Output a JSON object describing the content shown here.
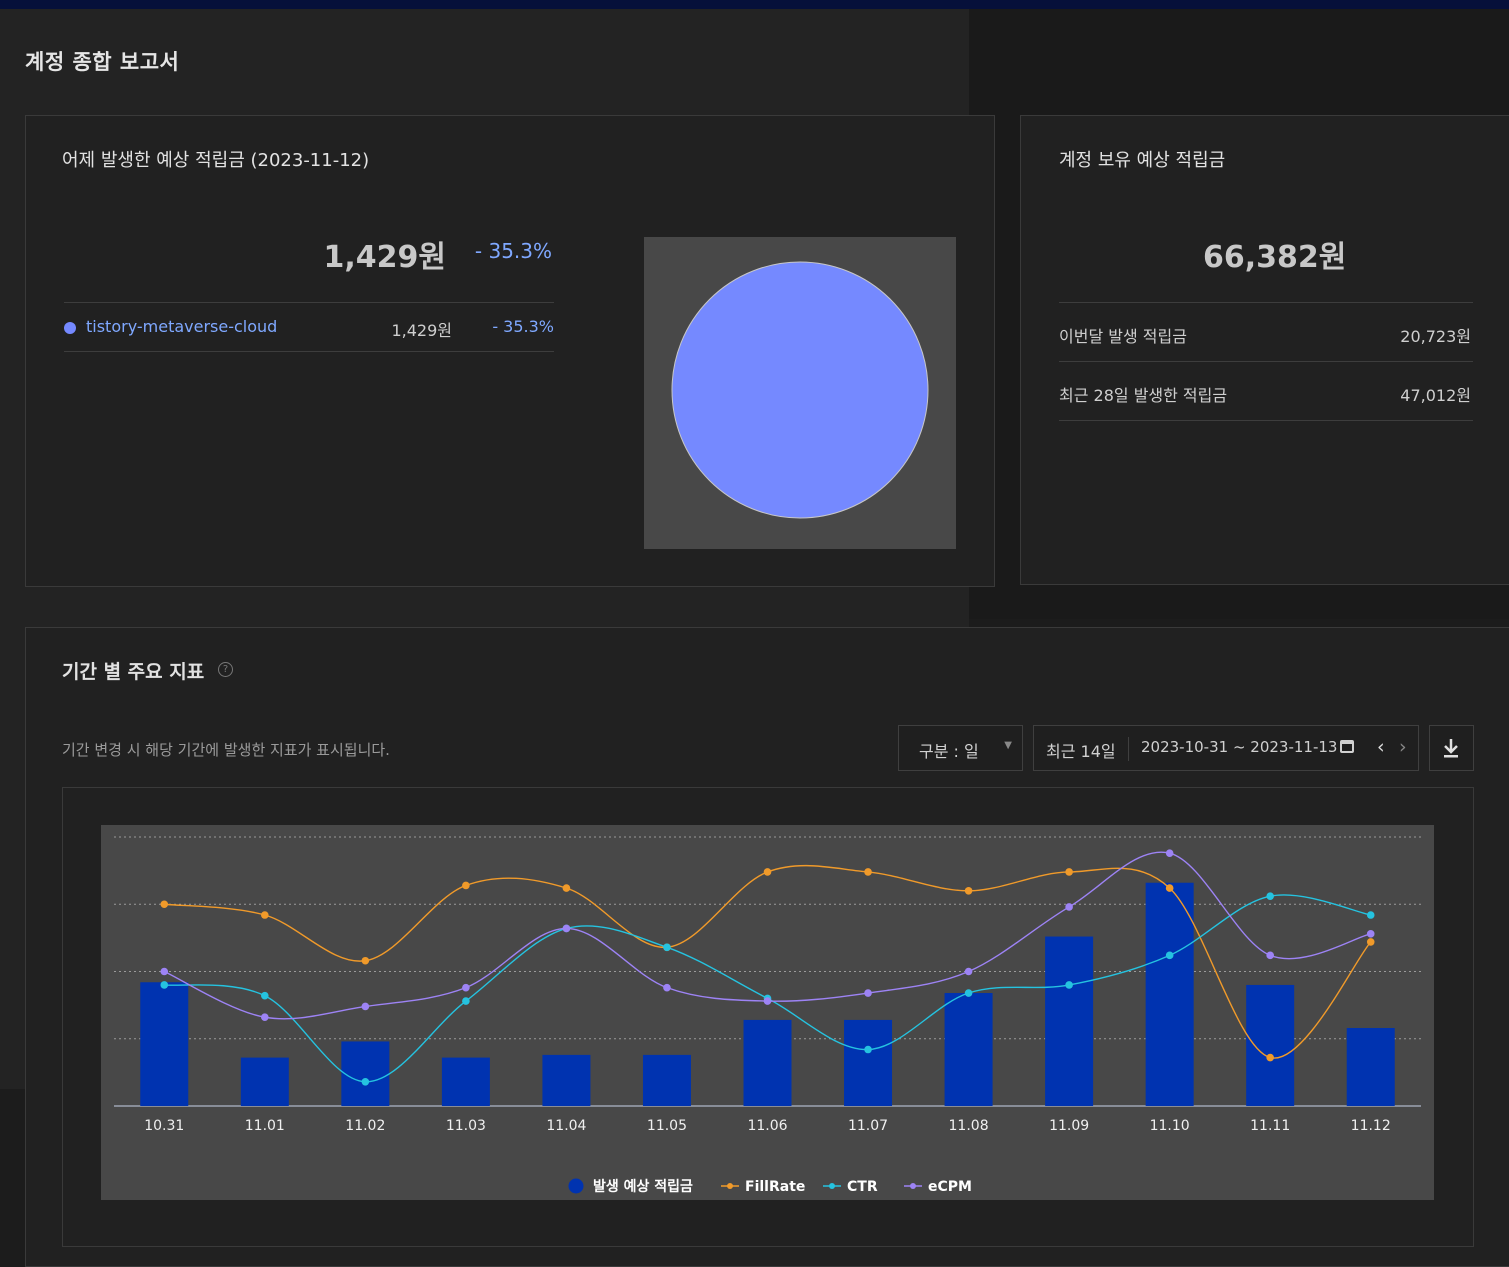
{
  "page": {
    "title": "계정 종합 보고서"
  },
  "yesterday": {
    "title": "어제 발생한 예상 적립금 (2023-11-12)",
    "amount": "1,429원",
    "change": "- 35.3%",
    "items": [
      {
        "name": "tistory-metaverse-cloud",
        "amount": "1,429원",
        "change": "- 35.3%",
        "color": "#7589ff"
      }
    ]
  },
  "balance": {
    "title": "계정 보유 예상 적립금",
    "amount": "66,382원",
    "rows": [
      {
        "label": "이번달 발생 적립금",
        "value": "20,723원"
      },
      {
        "label": "최근 28일 발생한 적립금",
        "value": "47,012원"
      }
    ]
  },
  "metrics": {
    "title": "기간 별 주요 지표",
    "help_icon": "question-circle-icon",
    "desc": "기간 변경 시 해당 기간에 발생한 지표가 표시됩니다.",
    "unit_select": "구분 : 일",
    "range_label": "최근 14일",
    "date_range": "2023-10-31 ~ 2023-11-13"
  },
  "chart_data": {
    "type": "bar",
    "categories": [
      "10.31",
      "11.01",
      "11.02",
      "11.03",
      "11.04",
      "11.05",
      "11.06",
      "11.07",
      "11.08",
      "11.09",
      "11.10",
      "11.11",
      "11.12"
    ],
    "ylim": [
      0,
      100
    ],
    "series": [
      {
        "name": "발생 예상 적립금",
        "kind": "bar",
        "color": "#0033b0",
        "values": [
          46,
          18,
          24,
          18,
          19,
          19,
          32,
          32,
          42,
          63,
          83,
          45,
          29
        ]
      },
      {
        "name": "FillRate",
        "kind": "line",
        "color": "#f09a2a",
        "values": [
          75,
          71,
          54,
          82,
          81,
          59,
          87,
          87,
          80,
          87,
          81,
          18,
          61
        ]
      },
      {
        "name": "CTR",
        "kind": "line",
        "color": "#25c3e0",
        "values": [
          45,
          41,
          9,
          39,
          66,
          59,
          40,
          21,
          42,
          45,
          56,
          78,
          71
        ]
      },
      {
        "name": "eCPM",
        "kind": "line",
        "color": "#9d83f5",
        "values": [
          50,
          33,
          37,
          44,
          66,
          44,
          39,
          42,
          50,
          74,
          94,
          56,
          64
        ]
      }
    ]
  }
}
